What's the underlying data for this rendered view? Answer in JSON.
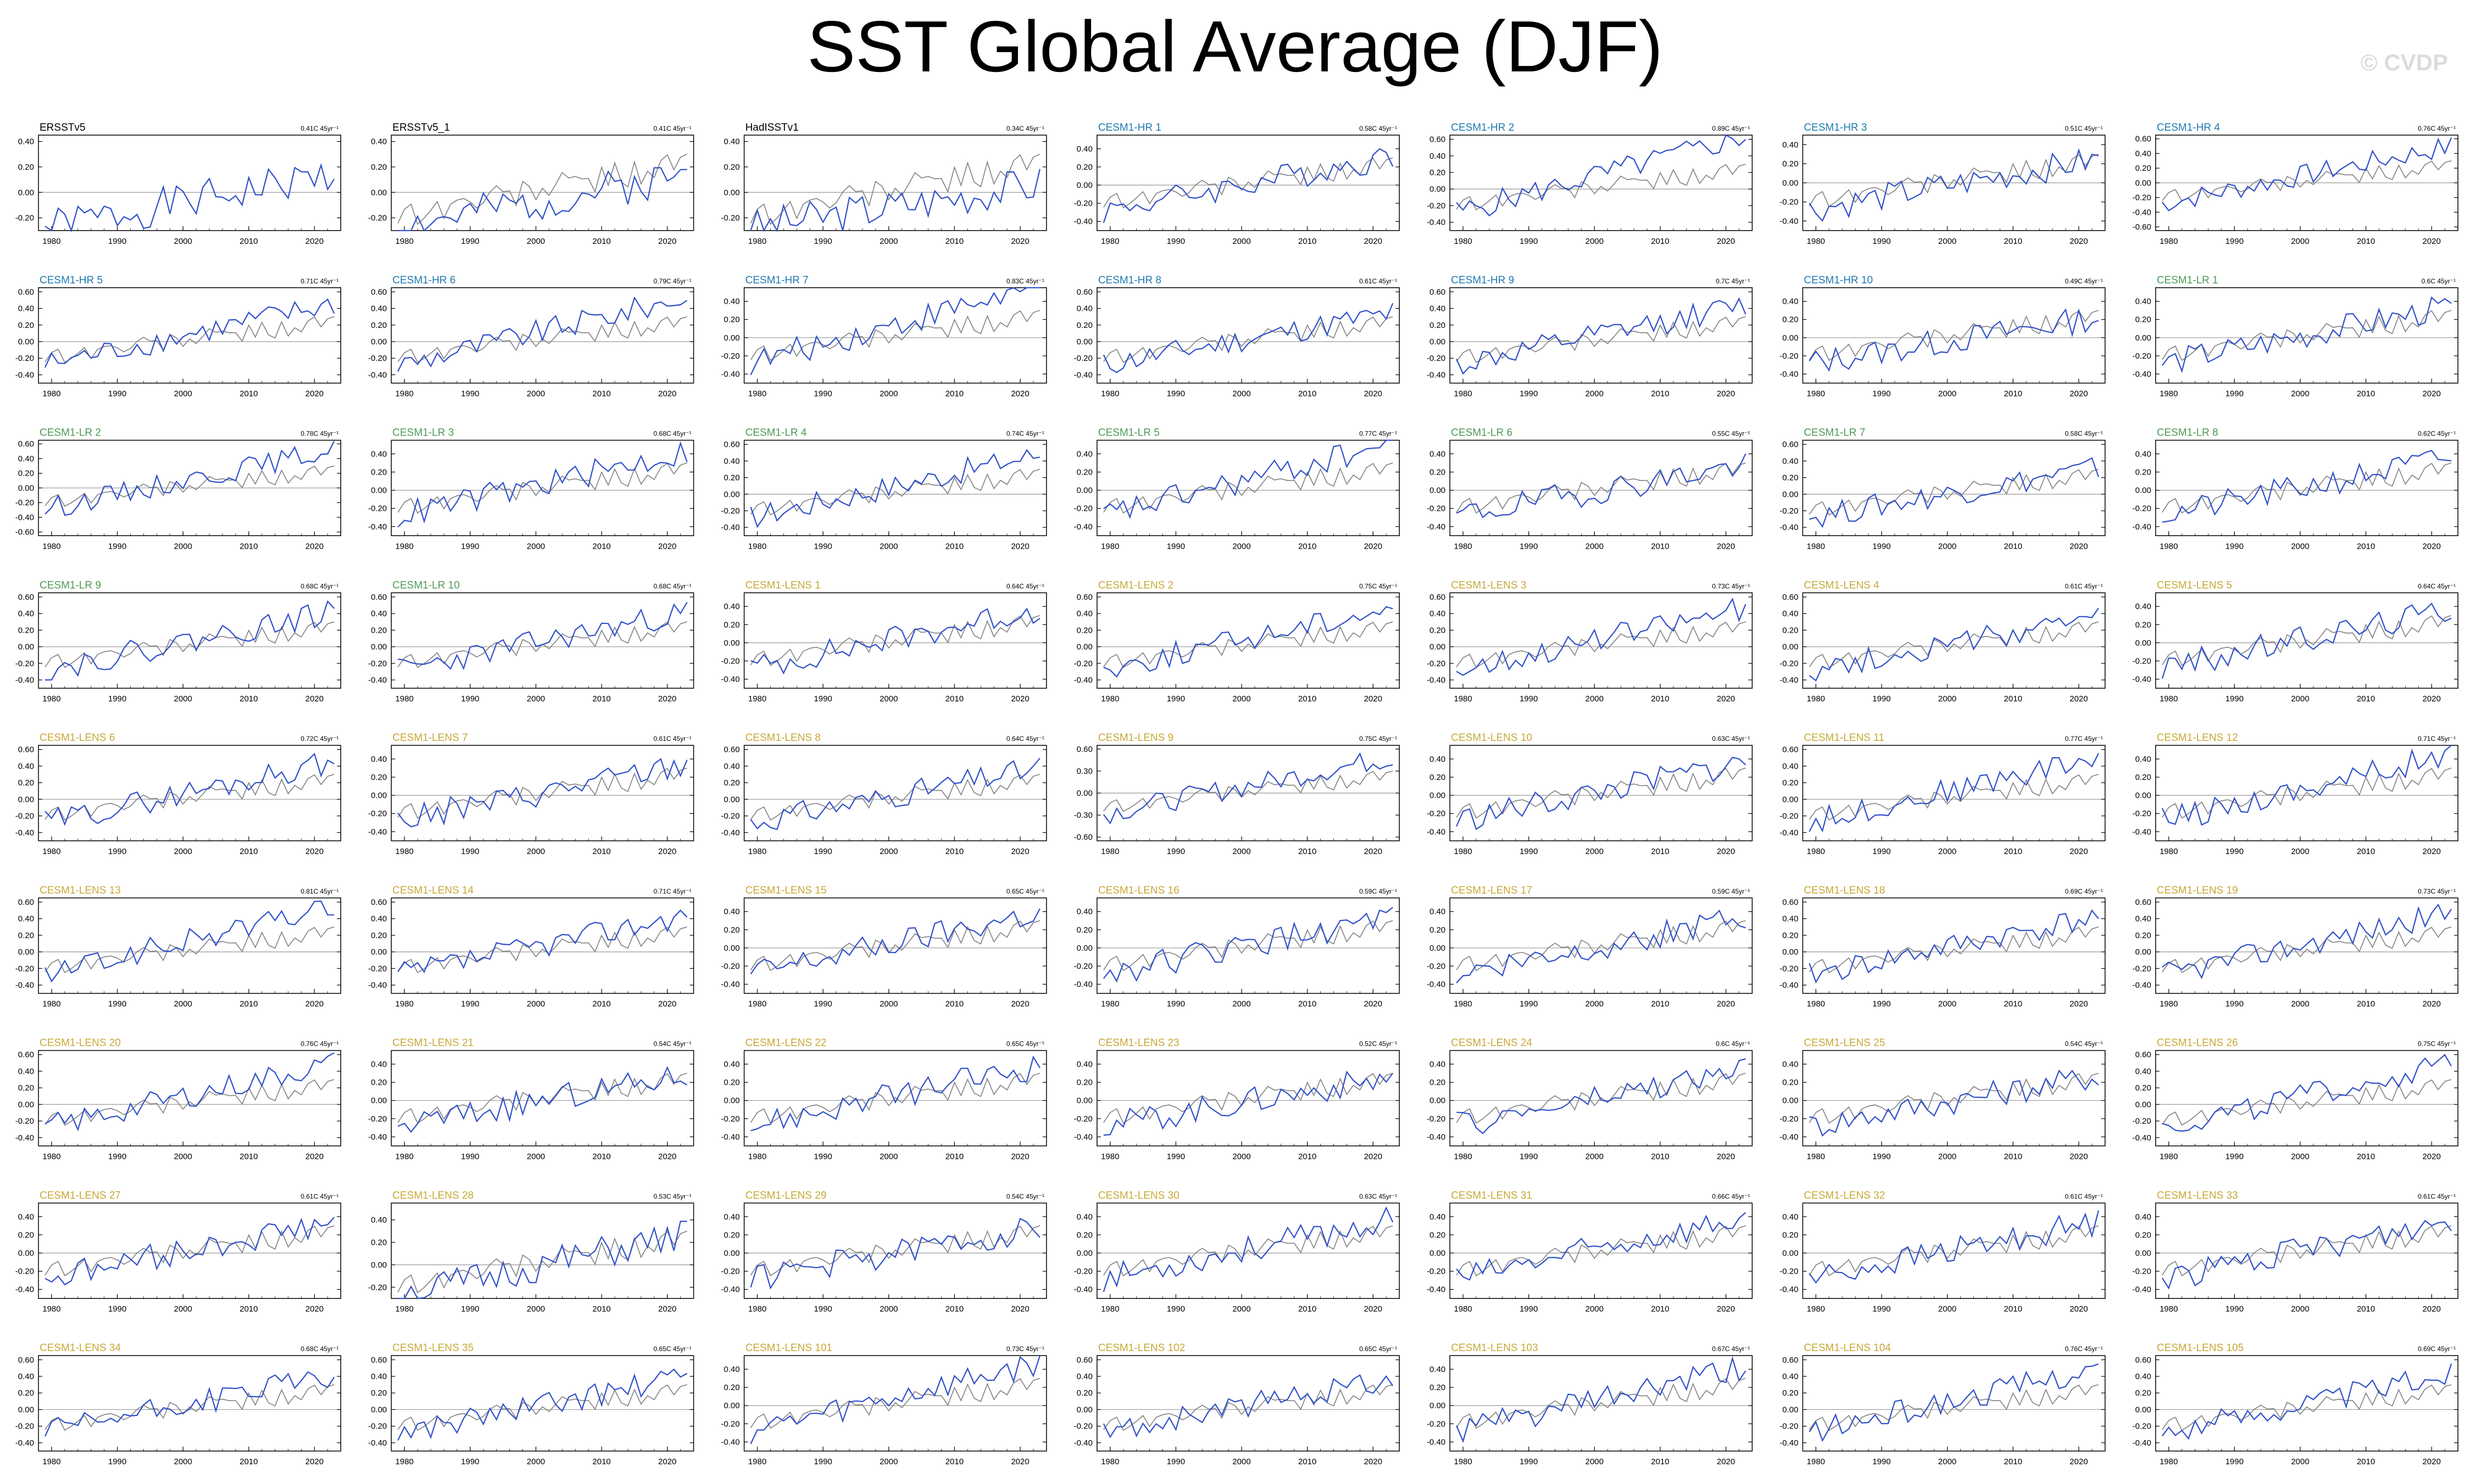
{
  "title": "SST Global Average (DJF)",
  "watermark": "© CVDP",
  "chart_data": {
    "type": "line",
    "x_range": [
      1978,
      2024
    ],
    "x_ticks": [
      1980,
      1990,
      2000,
      2010,
      2020
    ],
    "trend_unit": "45yr⁻¹",
    "colors": {
      "model_series": "#3050c8",
      "obs_series": "#808080",
      "zero_line": "#999999",
      "obs_label": "#000000",
      "hr_label": "#1f7ab0",
      "lr_label": "#4e9a55",
      "lens_label": "#c8a838"
    },
    "panels": [
      {
        "name": "ERSSTv5",
        "group": "obs",
        "trend": "0.41C",
        "ylim": [
          -0.3,
          0.45
        ],
        "yticks": [
          "0.40",
          "0.20",
          "0.00",
          "-0.20"
        ],
        "seed": 1
      },
      {
        "name": "ERSSTv5_1",
        "group": "obs",
        "trend": "0.41C",
        "ylim": [
          -0.3,
          0.45
        ],
        "yticks": [
          "0.40",
          "0.20",
          "0.00",
          "-0.20"
        ],
        "seed": 2
      },
      {
        "name": "HadISSTv1",
        "group": "obs",
        "trend": "0.34C",
        "ylim": [
          -0.3,
          0.45
        ],
        "yticks": [
          "0.40",
          "0.20",
          "0.00",
          "-0.20"
        ],
        "seed": 3
      },
      {
        "name": "CESM1-HR 1",
        "group": "hr",
        "trend": "0.58C",
        "ylim": [
          -0.5,
          0.55
        ],
        "yticks": [
          "0.40",
          "0.20",
          "0.00",
          "-0.20",
          "-0.40"
        ],
        "seed": 4
      },
      {
        "name": "CESM1-HR 2",
        "group": "hr",
        "trend": "0.89C",
        "ylim": [
          -0.5,
          0.65
        ],
        "yticks": [
          "0.60",
          "0.40",
          "0.20",
          "0.00",
          "-0.20",
          "-0.40"
        ],
        "seed": 5
      },
      {
        "name": "CESM1-HR 3",
        "group": "hr",
        "trend": "0.51C",
        "ylim": [
          -0.5,
          0.5
        ],
        "yticks": [
          "0.40",
          "0.20",
          "0.00",
          "-0.20",
          "-0.40"
        ],
        "seed": 6
      },
      {
        "name": "CESM1-HR 4",
        "group": "hr",
        "trend": "0.76C",
        "ylim": [
          -0.65,
          0.65
        ],
        "yticks": [
          "0.60",
          "0.40",
          "0.20",
          "0.00",
          "-0.20",
          "-0.40",
          "-0.60"
        ],
        "seed": 7
      },
      {
        "name": "CESM1-HR 5",
        "group": "hr",
        "trend": "0.71C",
        "ylim": [
          -0.5,
          0.65
        ],
        "yticks": [
          "0.60",
          "0.40",
          "0.20",
          "0.00",
          "-0.20",
          "-0.40"
        ],
        "seed": 8
      },
      {
        "name": "CESM1-HR 6",
        "group": "hr",
        "trend": "0.79C",
        "ylim": [
          -0.5,
          0.65
        ],
        "yticks": [
          "0.60",
          "0.40",
          "0.20",
          "0.00",
          "-0.20",
          "-0.40"
        ],
        "seed": 9
      },
      {
        "name": "CESM1-HR 7",
        "group": "hr",
        "trend": "0.83C",
        "ylim": [
          -0.5,
          0.55
        ],
        "yticks": [
          "0.40",
          "0.20",
          "0.00",
          "-0.20",
          "-0.40"
        ],
        "seed": 10
      },
      {
        "name": "CESM1-HR 8",
        "group": "hr",
        "trend": "0.61C",
        "ylim": [
          -0.5,
          0.65
        ],
        "yticks": [
          "0.60",
          "0.40",
          "0.20",
          "0.00",
          "-0.20",
          "-0.40"
        ],
        "seed": 11
      },
      {
        "name": "CESM1-HR 9",
        "group": "hr",
        "trend": "0.7C",
        "ylim": [
          -0.5,
          0.65
        ],
        "yticks": [
          "0.60",
          "0.40",
          "0.20",
          "0.00",
          "-0.20",
          "-0.40"
        ],
        "seed": 12
      },
      {
        "name": "CESM1-HR 10",
        "group": "hr",
        "trend": "0.49C",
        "ylim": [
          -0.5,
          0.55
        ],
        "yticks": [
          "0.40",
          "0.20",
          "0.00",
          "-0.20",
          "-0.40"
        ],
        "seed": 13
      },
      {
        "name": "CESM1-LR 1",
        "group": "lr",
        "trend": "0.6C",
        "ylim": [
          -0.5,
          0.55
        ],
        "yticks": [
          "0.40",
          "0.20",
          "0.00",
          "-0.20",
          "-0.40"
        ],
        "seed": 14
      },
      {
        "name": "CESM1-LR 2",
        "group": "lr",
        "trend": "0.78C",
        "ylim": [
          -0.65,
          0.65
        ],
        "yticks": [
          "0.60",
          "0.40",
          "0.20",
          "0.00",
          "-0.20",
          "-0.40",
          "-0.60"
        ],
        "seed": 15
      },
      {
        "name": "CESM1-LR 3",
        "group": "lr",
        "trend": "0.68C",
        "ylim": [
          -0.5,
          0.55
        ],
        "yticks": [
          "0.40",
          "0.20",
          "0.00",
          "-0.20",
          "-0.40"
        ],
        "seed": 16
      },
      {
        "name": "CESM1-LR 4",
        "group": "lr",
        "trend": "0.74C",
        "ylim": [
          -0.5,
          0.65
        ],
        "yticks": [
          "0.60",
          "0.40",
          "0.20",
          "0.00",
          "-0.20",
          "-0.40"
        ],
        "seed": 17
      },
      {
        "name": "CESM1-LR 5",
        "group": "lr",
        "trend": "0.77C",
        "ylim": [
          -0.5,
          0.55
        ],
        "yticks": [
          "0.40",
          "0.20",
          "0.00",
          "-0.20",
          "-0.40"
        ],
        "seed": 18
      },
      {
        "name": "CESM1-LR 6",
        "group": "lr",
        "trend": "0.55C",
        "ylim": [
          -0.5,
          0.55
        ],
        "yticks": [
          "0.40",
          "0.20",
          "0.00",
          "-0.20",
          "-0.40"
        ],
        "seed": 19
      },
      {
        "name": "CESM1-LR 7",
        "group": "lr",
        "trend": "0.58C",
        "ylim": [
          -0.5,
          0.65
        ],
        "yticks": [
          "0.60",
          "0.40",
          "0.20",
          "0.00",
          "-0.20",
          "-0.40"
        ],
        "seed": 20
      },
      {
        "name": "CESM1-LR 8",
        "group": "lr",
        "trend": "0.62C",
        "ylim": [
          -0.5,
          0.55
        ],
        "yticks": [
          "0.40",
          "0.20",
          "0.00",
          "-0.20",
          "-0.40"
        ],
        "seed": 21
      },
      {
        "name": "CESM1-LR 9",
        "group": "lr",
        "trend": "0.68C",
        "ylim": [
          -0.5,
          0.65
        ],
        "yticks": [
          "0.60",
          "0.40",
          "0.20",
          "0.00",
          "-0.20",
          "-0.40"
        ],
        "seed": 22
      },
      {
        "name": "CESM1-LR 10",
        "group": "lr",
        "trend": "0.68C",
        "ylim": [
          -0.5,
          0.65
        ],
        "yticks": [
          "0.60",
          "0.40",
          "0.20",
          "0.00",
          "-0.20",
          "-0.40"
        ],
        "seed": 23
      },
      {
        "name": "CESM1-LENS 1",
        "group": "lens",
        "trend": "0.64C",
        "ylim": [
          -0.5,
          0.55
        ],
        "yticks": [
          "0.40",
          "0.20",
          "0.00",
          "-0.20",
          "-0.40"
        ],
        "seed": 24
      },
      {
        "name": "CESM1-LENS 2",
        "group": "lens",
        "trend": "0.75C",
        "ylim": [
          -0.5,
          0.65
        ],
        "yticks": [
          "0.60",
          "0.40",
          "0.20",
          "0.00",
          "-0.20",
          "-0.40"
        ],
        "seed": 25
      },
      {
        "name": "CESM1-LENS 3",
        "group": "lens",
        "trend": "0.73C",
        "ylim": [
          -0.5,
          0.65
        ],
        "yticks": [
          "0.60",
          "0.40",
          "0.20",
          "0.00",
          "-0.20",
          "-0.40"
        ],
        "seed": 26
      },
      {
        "name": "CESM1-LENS 4",
        "group": "lens",
        "trend": "0.61C",
        "ylim": [
          -0.5,
          0.65
        ],
        "yticks": [
          "0.60",
          "0.40",
          "0.20",
          "0.00",
          "-0.20",
          "-0.40"
        ],
        "seed": 27
      },
      {
        "name": "CESM1-LENS 5",
        "group": "lens",
        "trend": "0.64C",
        "ylim": [
          -0.5,
          0.55
        ],
        "yticks": [
          "0.40",
          "0.20",
          "0.00",
          "-0.20",
          "-0.40"
        ],
        "seed": 28
      },
      {
        "name": "CESM1-LENS 6",
        "group": "lens",
        "trend": "0.72C",
        "ylim": [
          -0.5,
          0.65
        ],
        "yticks": [
          "0.60",
          "0.40",
          "0.20",
          "0.00",
          "-0.20",
          "-0.40"
        ],
        "seed": 29
      },
      {
        "name": "CESM1-LENS 7",
        "group": "lens",
        "trend": "0.61C",
        "ylim": [
          -0.5,
          0.55
        ],
        "yticks": [
          "0.40",
          "0.20",
          "0.00",
          "-0.20",
          "-0.40"
        ],
        "seed": 30
      },
      {
        "name": "CESM1-LENS 8",
        "group": "lens",
        "trend": "0.64C",
        "ylim": [
          -0.5,
          0.65
        ],
        "yticks": [
          "0.60",
          "0.40",
          "0.20",
          "0.00",
          "-0.20",
          "-0.40"
        ],
        "seed": 31
      },
      {
        "name": "CESM1-LENS 9",
        "group": "lens",
        "trend": "0.75C",
        "ylim": [
          -0.65,
          0.65
        ],
        "yticks": [
          "0.60",
          "0.30",
          "0.00",
          "-0.30",
          "-0.60"
        ],
        "seed": 32
      },
      {
        "name": "CESM1-LENS 10",
        "group": "lens",
        "trend": "0.63C",
        "ylim": [
          -0.5,
          0.55
        ],
        "yticks": [
          "0.40",
          "0.20",
          "0.00",
          "-0.20",
          "-0.40"
        ],
        "seed": 33
      },
      {
        "name": "CESM1-LENS 11",
        "group": "lens",
        "trend": "0.77C",
        "ylim": [
          -0.5,
          0.65
        ],
        "yticks": [
          "0.60",
          "0.40",
          "0.20",
          "0.00",
          "-0.20",
          "-0.40"
        ],
        "seed": 34
      },
      {
        "name": "CESM1-LENS 12",
        "group": "lens",
        "trend": "0.71C",
        "ylim": [
          -0.5,
          0.55
        ],
        "yticks": [
          "0.40",
          "0.20",
          "0.00",
          "-0.20",
          "-0.40"
        ],
        "seed": 35
      },
      {
        "name": "CESM1-LENS 13",
        "group": "lens",
        "trend": "0.81C",
        "ylim": [
          -0.5,
          0.65
        ],
        "yticks": [
          "0.60",
          "0.40",
          "0.20",
          "0.00",
          "-0.20",
          "-0.40"
        ],
        "seed": 36
      },
      {
        "name": "CESM1-LENS 14",
        "group": "lens",
        "trend": "0.71C",
        "ylim": [
          -0.5,
          0.65
        ],
        "yticks": [
          "0.60",
          "0.40",
          "0.20",
          "0.00",
          "-0.20",
          "-0.40"
        ],
        "seed": 37
      },
      {
        "name": "CESM1-LENS 15",
        "group": "lens",
        "trend": "0.65C",
        "ylim": [
          -0.5,
          0.55
        ],
        "yticks": [
          "0.40",
          "0.20",
          "0.00",
          "-0.20",
          "-0.40"
        ],
        "seed": 38
      },
      {
        "name": "CESM1-LENS 16",
        "group": "lens",
        "trend": "0.59C",
        "ylim": [
          -0.5,
          0.55
        ],
        "yticks": [
          "0.40",
          "0.20",
          "0.00",
          "-0.20",
          "-0.40"
        ],
        "seed": 39
      },
      {
        "name": "CESM1-LENS 17",
        "group": "lens",
        "trend": "0.59C",
        "ylim": [
          -0.5,
          0.55
        ],
        "yticks": [
          "0.40",
          "0.20",
          "0.00",
          "-0.20",
          "-0.40"
        ],
        "seed": 40
      },
      {
        "name": "CESM1-LENS 18",
        "group": "lens",
        "trend": "0.69C",
        "ylim": [
          -0.5,
          0.65
        ],
        "yticks": [
          "0.60",
          "0.40",
          "0.20",
          "0.00",
          "-0.20",
          "-0.40"
        ],
        "seed": 41
      },
      {
        "name": "CESM1-LENS 19",
        "group": "lens",
        "trend": "0.73C",
        "ylim": [
          -0.5,
          0.65
        ],
        "yticks": [
          "0.60",
          "0.40",
          "0.20",
          "0.00",
          "-0.20",
          "-0.40"
        ],
        "seed": 42
      },
      {
        "name": "CESM1-LENS 20",
        "group": "lens",
        "trend": "0.76C",
        "ylim": [
          -0.5,
          0.65
        ],
        "yticks": [
          "0.60",
          "0.40",
          "0.20",
          "0.00",
          "-0.20",
          "-0.40"
        ],
        "seed": 43
      },
      {
        "name": "CESM1-LENS 21",
        "group": "lens",
        "trend": "0.54C",
        "ylim": [
          -0.5,
          0.55
        ],
        "yticks": [
          "0.40",
          "0.20",
          "0.00",
          "-0.20",
          "-0.40"
        ],
        "seed": 44
      },
      {
        "name": "CESM1-LENS 22",
        "group": "lens",
        "trend": "0.65C",
        "ylim": [
          -0.5,
          0.55
        ],
        "yticks": [
          "0.40",
          "0.20",
          "0.00",
          "-0.20",
          "-0.40"
        ],
        "seed": 45
      },
      {
        "name": "CESM1-LENS 23",
        "group": "lens",
        "trend": "0.52C",
        "ylim": [
          -0.5,
          0.55
        ],
        "yticks": [
          "0.40",
          "0.20",
          "0.00",
          "-0.20",
          "-0.40"
        ],
        "seed": 46
      },
      {
        "name": "CESM1-LENS 24",
        "group": "lens",
        "trend": "0.6C",
        "ylim": [
          -0.5,
          0.55
        ],
        "yticks": [
          "0.40",
          "0.20",
          "0.00",
          "-0.20",
          "-0.40"
        ],
        "seed": 47
      },
      {
        "name": "CESM1-LENS 25",
        "group": "lens",
        "trend": "0.54C",
        "ylim": [
          -0.5,
          0.55
        ],
        "yticks": [
          "0.40",
          "0.20",
          "0.00",
          "-0.20",
          "-0.40"
        ],
        "seed": 48
      },
      {
        "name": "CESM1-LENS 26",
        "group": "lens",
        "trend": "0.75C",
        "ylim": [
          -0.5,
          0.65
        ],
        "yticks": [
          "0.60",
          "0.40",
          "0.20",
          "0.00",
          "-0.20",
          "-0.40"
        ],
        "seed": 49
      },
      {
        "name": "CESM1-LENS 27",
        "group": "lens",
        "trend": "0.61C",
        "ylim": [
          -0.5,
          0.55
        ],
        "yticks": [
          "0.40",
          "0.20",
          "0.00",
          "-0.20",
          "-0.40"
        ],
        "seed": 50
      },
      {
        "name": "CESM1-LENS 28",
        "group": "lens",
        "trend": "0.53C",
        "ylim": [
          -0.3,
          0.55
        ],
        "yticks": [
          "0.40",
          "0.20",
          "0.00",
          "-0.20"
        ],
        "seed": 51
      },
      {
        "name": "CESM1-LENS 29",
        "group": "lens",
        "trend": "0.54C",
        "ylim": [
          -0.5,
          0.55
        ],
        "yticks": [
          "0.40",
          "0.20",
          "0.00",
          "-0.20",
          "-0.40"
        ],
        "seed": 52
      },
      {
        "name": "CESM1-LENS 30",
        "group": "lens",
        "trend": "0.63C",
        "ylim": [
          -0.5,
          0.55
        ],
        "yticks": [
          "0.40",
          "0.20",
          "0.00",
          "-0.20",
          "-0.40"
        ],
        "seed": 53
      },
      {
        "name": "CESM1-LENS 31",
        "group": "lens",
        "trend": "0.66C",
        "ylim": [
          -0.5,
          0.55
        ],
        "yticks": [
          "0.40",
          "0.20",
          "0.00",
          "-0.20",
          "-0.40"
        ],
        "seed": 54
      },
      {
        "name": "CESM1-LENS 32",
        "group": "lens",
        "trend": "0.61C",
        "ylim": [
          -0.5,
          0.55
        ],
        "yticks": [
          "0.40",
          "0.20",
          "0.00",
          "-0.20",
          "-0.40"
        ],
        "seed": 55
      },
      {
        "name": "CESM1-LENS 33",
        "group": "lens",
        "trend": "0.61C",
        "ylim": [
          -0.5,
          0.55
        ],
        "yticks": [
          "0.40",
          "0.20",
          "0.00",
          "-0.20",
          "-0.40"
        ],
        "seed": 56
      },
      {
        "name": "CESM1-LENS 34",
        "group": "lens",
        "trend": "0.68C",
        "ylim": [
          -0.5,
          0.65
        ],
        "yticks": [
          "0.60",
          "0.40",
          "0.20",
          "0.00",
          "-0.20",
          "-0.40"
        ],
        "seed": 57
      },
      {
        "name": "CESM1-LENS 35",
        "group": "lens",
        "trend": "0.65C",
        "ylim": [
          -0.5,
          0.65
        ],
        "yticks": [
          "0.60",
          "0.40",
          "0.20",
          "0.00",
          "-0.20",
          "-0.40"
        ],
        "seed": 58
      },
      {
        "name": "CESM1-LENS 101",
        "group": "lens",
        "trend": "0.73C",
        "ylim": [
          -0.5,
          0.55
        ],
        "yticks": [
          "0.40",
          "0.20",
          "0.00",
          "-0.20",
          "-0.40"
        ],
        "seed": 59
      },
      {
        "name": "CESM1-LENS 102",
        "group": "lens",
        "trend": "0.65C",
        "ylim": [
          -0.5,
          0.65
        ],
        "yticks": [
          "0.60",
          "0.40",
          "0.20",
          "0.00",
          "-0.20",
          "-0.40"
        ],
        "seed": 60
      },
      {
        "name": "CESM1-LENS 103",
        "group": "lens",
        "trend": "0.67C",
        "ylim": [
          -0.5,
          0.55
        ],
        "yticks": [
          "0.40",
          "0.20",
          "0.00",
          "-0.20",
          "-0.40"
        ],
        "seed": 61
      },
      {
        "name": "CESM1-LENS 104",
        "group": "lens",
        "trend": "0.76C",
        "ylim": [
          -0.5,
          0.65
        ],
        "yticks": [
          "0.60",
          "0.40",
          "0.20",
          "0.00",
          "-0.20",
          "-0.40"
        ],
        "seed": 62
      },
      {
        "name": "CESM1-LENS 105",
        "group": "lens",
        "trend": "0.69C",
        "ylim": [
          -0.5,
          0.65
        ],
        "yticks": [
          "0.60",
          "0.40",
          "0.20",
          "0.00",
          "-0.20",
          "-0.40"
        ],
        "seed": 63
      }
    ]
  }
}
